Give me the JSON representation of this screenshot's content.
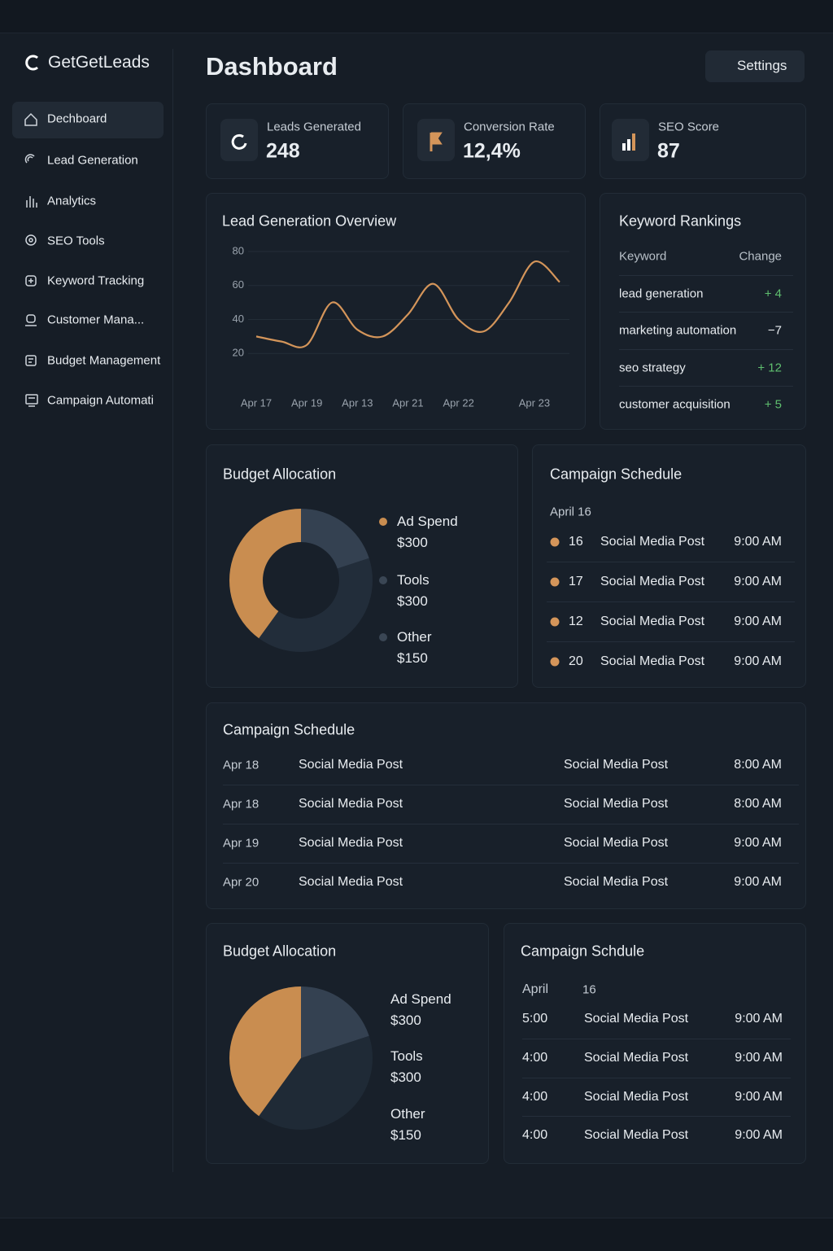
{
  "sidebar": {
    "brand": "GetGetLeads",
    "nav": [
      "Dechboard",
      "Lead Generation",
      "Analytics",
      "SEO Tools",
      "Keyword Tracking",
      "Customer Mana...",
      "Budget Management",
      "Campaign Automati"
    ]
  },
  "header": {
    "title": "Dashboard",
    "settings": "Settings"
  },
  "stats": [
    {
      "label": "Leads Generated",
      "value": 248
    },
    {
      "label": "Conversion Rate",
      "value": "12,4%"
    },
    {
      "label": "SEO Score",
      "value": 87
    }
  ],
  "chart_data": [
    {
      "type": "line",
      "title": "Lead Generation Overview",
      "categories": [
        "Apr 17",
        null,
        "Apr 19",
        null,
        "Apr 13",
        null,
        "Apr 21",
        null,
        "Apr 22",
        null,
        null,
        "Apr 23",
        null
      ],
      "values": [
        30,
        27,
        25,
        50,
        34,
        30,
        43,
        61,
        40,
        33,
        50,
        74,
        62
      ],
      "color": "#d4955a",
      "ylim": [
        0,
        80
      ],
      "yticks": [
        20,
        40,
        60,
        80
      ],
      "grid": true
    },
    {
      "type": "donut",
      "title": "Budget Allocation",
      "categories": [
        "Ad Spend",
        "Tools",
        "Other"
      ],
      "values": [
        300,
        300,
        150
      ],
      "value_labels": [
        "$300",
        "$300",
        "$150"
      ],
      "colors": [
        "#c98d50",
        "#222d3a",
        "#344151"
      ]
    },
    {
      "type": "pie",
      "title": "Budget Allocation",
      "categories": [
        "Ad Spend",
        "Tools",
        "Other"
      ],
      "values": [
        300,
        300,
        150
      ],
      "value_labels": [
        "$300",
        "$300",
        "$150"
      ],
      "colors": [
        "#c98d50",
        "#1f2a36",
        "#344151"
      ]
    }
  ],
  "keyword_rankings": {
    "title": "Keyword Rankings",
    "headers": [
      "Keyword",
      "Change"
    ],
    "rows": [
      [
        "lead generation",
        "+ 4"
      ],
      [
        "marketing automation",
        "−7"
      ],
      [
        "seo strategy",
        "+ 12"
      ],
      [
        "customer acquisition",
        "+ 5"
      ]
    ]
  },
  "schedule_a": {
    "title": "Campaign Schedule",
    "date": "April 16",
    "rows": [
      [
        "16",
        "Social Media Post",
        "9:00 AM"
      ],
      [
        "17",
        "Social Media Post",
        "9:00 AM"
      ],
      [
        "12",
        "Social Media Post",
        "9:00 AM"
      ],
      [
        "20",
        "Social Media Post",
        "9:00 AM"
      ]
    ]
  },
  "schedule_b": {
    "title": "Campaign Schedule",
    "rows": [
      [
        "Apr 18",
        "Social Media Post",
        "Social Media Post",
        "8:00 AM"
      ],
      [
        "Apr 18",
        "Social Media Post",
        "Social Media Post",
        "8:00 AM"
      ],
      [
        "Apr 19",
        "Social Media Post",
        "Social Media Post",
        "9:00 AM"
      ],
      [
        "Apr 20",
        "Social Media Post",
        "Social Media Post",
        "9:00 AM"
      ]
    ]
  },
  "schedule_c": {
    "title": "Campaign Schdule",
    "date": [
      "April",
      "16"
    ],
    "rows": [
      [
        "5:00",
        "Social Media Post",
        "9:00 AM"
      ],
      [
        "4:00",
        "Social Media Post",
        "9:00 AM"
      ],
      [
        "4:00",
        "Social Media Post",
        "9:00 AM"
      ],
      [
        "4:00",
        "Social Media Post",
        "9:00 AM"
      ]
    ]
  }
}
